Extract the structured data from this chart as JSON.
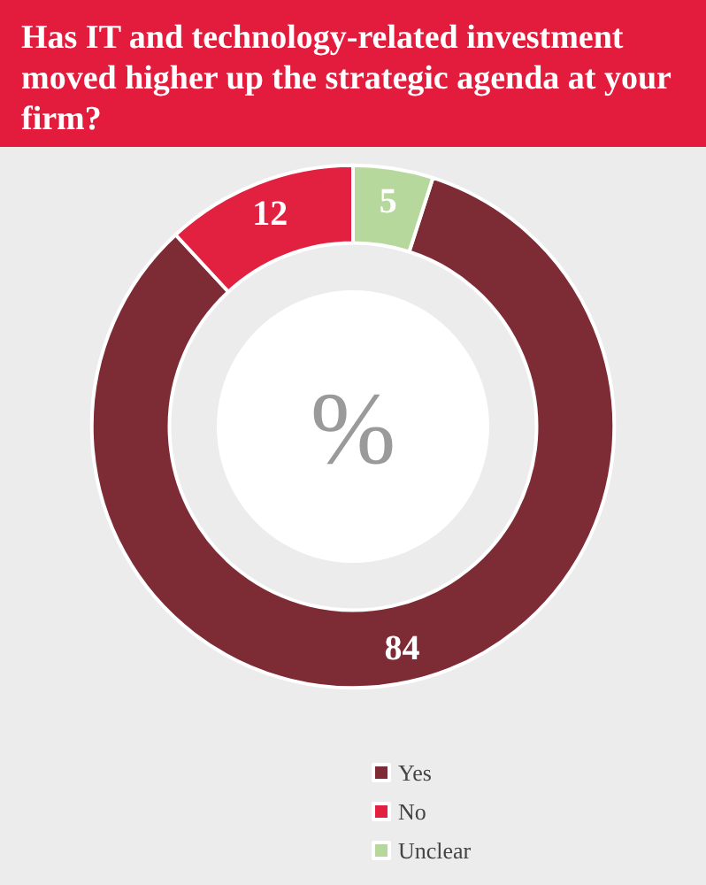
{
  "chart_data": {
    "type": "donut",
    "title": "Has IT and technology-related investment moved higher up the strategic agenda at your firm?",
    "categories": [
      "Yes",
      "No",
      "Unclear"
    ],
    "values": [
      84,
      12,
      5
    ],
    "colors": [
      "#7d2b35",
      "#e2203f",
      "#b6d89c"
    ],
    "annotations": [
      "%"
    ],
    "data_labels": true,
    "legend": "bottom"
  }
}
